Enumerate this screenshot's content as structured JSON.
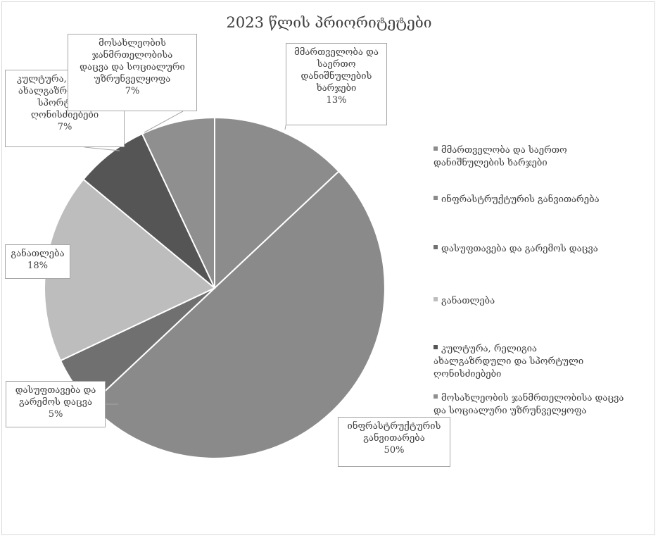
{
  "chart_data": {
    "type": "pie",
    "title": "2023 წლის პრიორიტეტები",
    "slices": [
      {
        "name": "მმართველობა და საერთო დანიშნულების ხარჯები",
        "label_lines": [
          "მმართველობა და",
          "საერთო",
          "დანიშნულების",
          "ხარჯები"
        ],
        "value": 13,
        "percent": "13%",
        "color": "#8c8c8c"
      },
      {
        "name": "ინფრასტრუქტურის განვითარება",
        "label_lines": [
          "ინფრასტრუქტურის",
          "განვითარება"
        ],
        "value": 50,
        "percent": "50%",
        "color": "#8a8a8a"
      },
      {
        "name": "დასუფთავება და გარემოს დაცვა",
        "label_lines": [
          "დასუფთავება და",
          "გარემოს დაცვა"
        ],
        "value": 5,
        "percent": "5%",
        "color": "#707070"
      },
      {
        "name": "განათლება",
        "label_lines": [
          "განათლება"
        ],
        "value": 18,
        "percent": "18%",
        "color": "#bdbdbd"
      },
      {
        "name": "კულტურა, რელიგია ახალგაზრდული და სპორტული ღონისძიებები",
        "label_lines": [
          "კულტურა, რელიგია",
          "ახალგაზრდული და",
          "სპორტული",
          "ღონისძიებები"
        ],
        "value": 7,
        "percent": "7%",
        "color": "#555555"
      },
      {
        "name": "მოსახლეობის ჯანმრთელობისა დაცვა და სოციალური უზრუნველყოფა",
        "label_lines": [
          "მოსახლეობის",
          "ჯანმრთელობისა",
          "დაცვა და  სოციალური",
          "უზრუნველყოფა"
        ],
        "value": 7,
        "percent": "7%",
        "color": "#8f8f8f"
      }
    ],
    "legend": {
      "placement": "right",
      "items": [
        {
          "lines": [
            "მმართველობა და საერთო",
            "დანიშნულების ხარჯები"
          ],
          "color": "#8c8c8c"
        },
        {
          "lines": [
            "ინფრასტრუქტურის განვითარება"
          ],
          "color": "#8a8a8a"
        },
        {
          "lines": [
            "დასუფთავება და გარემოს დაცვა"
          ],
          "color": "#707070"
        },
        {
          "lines": [
            "განათლება"
          ],
          "color": "#bdbdbd"
        },
        {
          "lines": [
            "კულტურა, რელიგია",
            "ახალგაზრდული და სპორტული",
            "ღონისძიებები"
          ],
          "color": "#555555"
        },
        {
          "lines": [
            "მოსახლეობის ჯანმრთელობისა დაცვა",
            "და  სოციალური უზრუნველყოფა"
          ],
          "color": "#8f8f8f"
        }
      ]
    }
  }
}
